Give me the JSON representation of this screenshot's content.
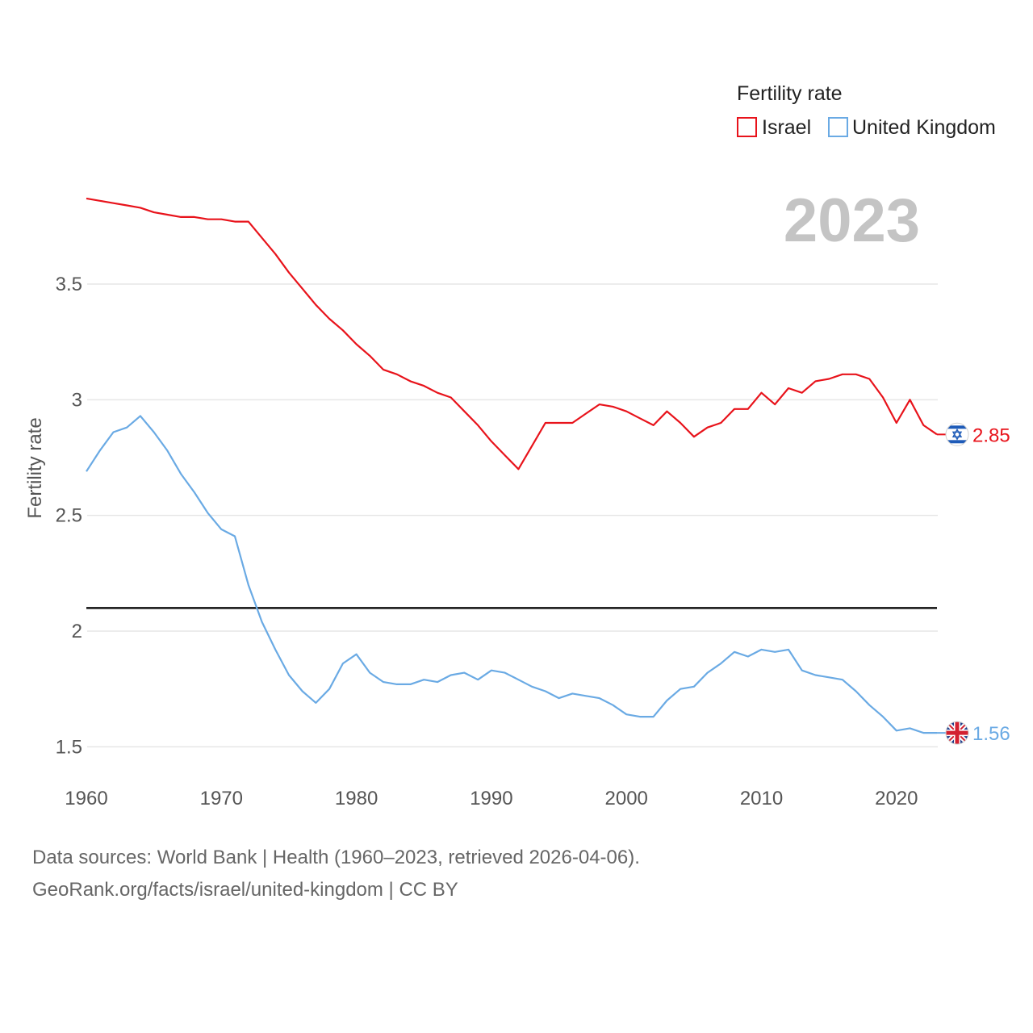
{
  "chart_data": {
    "type": "line",
    "ylabel": "Fertility rate",
    "xlabel": "",
    "xlim": [
      1960,
      2023
    ],
    "ylim": [
      1.4,
      3.95
    ],
    "x_ticks": [
      1960,
      1970,
      1980,
      1990,
      2000,
      2010,
      2020
    ],
    "y_ticks": [
      1.5,
      2,
      2.5,
      3,
      3.5
    ],
    "y_tick_labels": [
      "1.5",
      "2",
      "2.5",
      "3",
      "3.5"
    ],
    "current_year": "2023",
    "legend": {
      "title": "Fertility rate",
      "placement": "top-right"
    },
    "reference_line": {
      "y": 2.1,
      "color": "#111111"
    },
    "years": [
      1960,
      1961,
      1962,
      1963,
      1964,
      1965,
      1966,
      1967,
      1968,
      1969,
      1970,
      1971,
      1972,
      1973,
      1974,
      1975,
      1976,
      1977,
      1978,
      1979,
      1980,
      1981,
      1982,
      1983,
      1984,
      1985,
      1986,
      1987,
      1988,
      1989,
      1990,
      1991,
      1992,
      1993,
      1994,
      1995,
      1996,
      1997,
      1998,
      1999,
      2000,
      2001,
      2002,
      2003,
      2004,
      2005,
      2006,
      2007,
      2008,
      2009,
      2010,
      2011,
      2012,
      2013,
      2014,
      2015,
      2016,
      2017,
      2018,
      2019,
      2020,
      2021,
      2022,
      2023
    ],
    "series": [
      {
        "name": "Israel",
        "color": "#e8131b",
        "end_label": "2.85",
        "flag": "israel-flag",
        "values": [
          3.87,
          3.86,
          3.85,
          3.84,
          3.83,
          3.81,
          3.8,
          3.79,
          3.79,
          3.78,
          3.78,
          3.77,
          3.77,
          3.7,
          3.63,
          3.55,
          3.48,
          3.41,
          3.35,
          3.3,
          3.24,
          3.19,
          3.13,
          3.11,
          3.08,
          3.06,
          3.03,
          3.01,
          2.95,
          2.89,
          2.82,
          2.76,
          2.7,
          2.8,
          2.9,
          2.9,
          2.9,
          2.94,
          2.98,
          2.97,
          2.95,
          2.92,
          2.89,
          2.95,
          2.9,
          2.84,
          2.88,
          2.9,
          2.96,
          2.96,
          3.03,
          2.98,
          3.05,
          3.03,
          3.08,
          3.09,
          3.11,
          3.11,
          3.09,
          3.01,
          2.9,
          3.0,
          2.89,
          2.85
        ]
      },
      {
        "name": "United Kingdom",
        "color": "#6aaae4",
        "end_label": "1.56",
        "flag": "united-kingdom-flag",
        "values": [
          2.69,
          2.78,
          2.86,
          2.88,
          2.93,
          2.86,
          2.78,
          2.68,
          2.6,
          2.51,
          2.44,
          2.41,
          2.2,
          2.04,
          1.92,
          1.81,
          1.74,
          1.69,
          1.75,
          1.86,
          1.9,
          1.82,
          1.78,
          1.77,
          1.77,
          1.79,
          1.78,
          1.81,
          1.82,
          1.79,
          1.83,
          1.82,
          1.79,
          1.76,
          1.74,
          1.71,
          1.73,
          1.72,
          1.71,
          1.68,
          1.64,
          1.63,
          1.63,
          1.7,
          1.75,
          1.76,
          1.82,
          1.86,
          1.91,
          1.89,
          1.92,
          1.91,
          1.92,
          1.83,
          1.81,
          1.8,
          1.79,
          1.74,
          1.68,
          1.63,
          1.57,
          1.58,
          1.56,
          1.56
        ]
      }
    ]
  },
  "footer": {
    "line1": "Data sources: World Bank | Health (1960–2023, retrieved 2026-04-06).",
    "line2": "GeoRank.org/facts/israel/united-kingdom | CC BY"
  }
}
